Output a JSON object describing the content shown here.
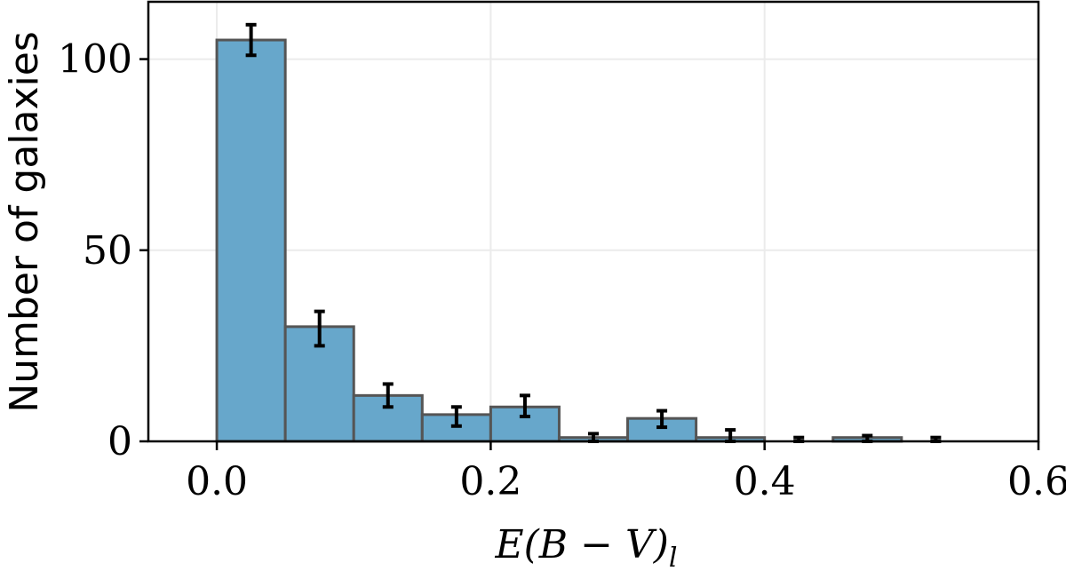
{
  "chart_data": {
    "type": "bar",
    "histogram": true,
    "xlabel": "E(B − V)",
    "xlabel_subscript": "l",
    "ylabel": "Number of galaxies",
    "xlim": [
      -0.05,
      0.6
    ],
    "ylim": [
      0,
      115
    ],
    "xticks": [
      0.0,
      0.2,
      0.4,
      0.6
    ],
    "xtick_labels": [
      "0.0",
      "0.2",
      "0.4",
      "0.6"
    ],
    "yticks": [
      0,
      50,
      100
    ],
    "ytick_labels": [
      "0",
      "50",
      "100"
    ],
    "grid": true,
    "bin_edges": [
      0.0,
      0.05,
      0.1,
      0.15,
      0.2,
      0.25,
      0.3,
      0.35,
      0.4,
      0.45,
      0.5,
      0.55,
      0.6
    ],
    "values": [
      105,
      30,
      12,
      7,
      9,
      1,
      6,
      1,
      0,
      1,
      0,
      0
    ],
    "error_low": [
      4,
      5,
      3,
      3,
      2.5,
      1,
      2.3,
      1,
      0,
      1,
      0,
      0
    ],
    "error_high": [
      4,
      4,
      3,
      2,
      3,
      1,
      2,
      2,
      1,
      0.5,
      1,
      0
    ],
    "colors": {
      "bar_fill": "#67a7cb",
      "bar_edge": "#555555",
      "errorbar": "#000000",
      "grid": "#ebebeb"
    }
  }
}
